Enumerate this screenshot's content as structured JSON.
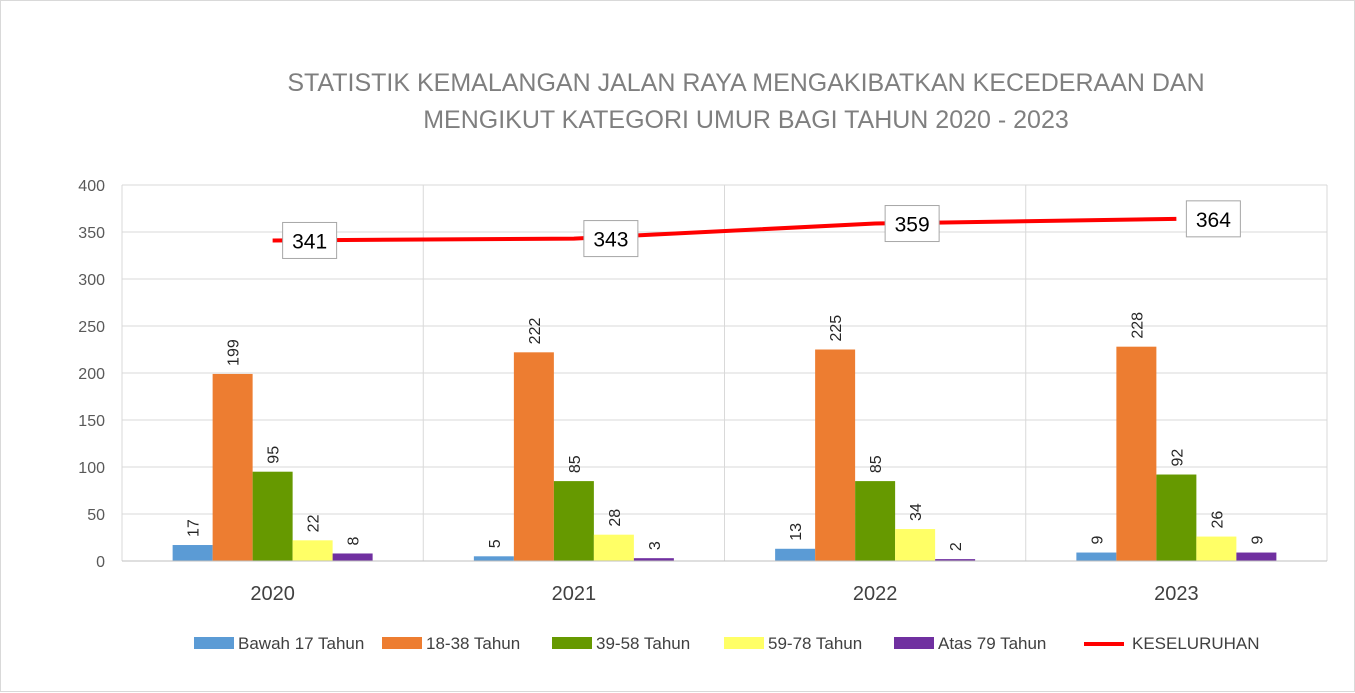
{
  "chart_data": {
    "type": "bar",
    "title": [
      "STATISTIK KEMALANGAN JALAN RAYA MENGAKIBATKAN KECEDERAAN DAN",
      "MENGIKUT KATEGORI UMUR  BAGI TAHUN 2020 - 2023"
    ],
    "categories": [
      "2020",
      "2021",
      "2022",
      "2023"
    ],
    "ylim": [
      0,
      400
    ],
    "yticks": [
      "0",
      "50",
      "100",
      "150",
      "200",
      "250",
      "300",
      "350",
      "400"
    ],
    "grid": true,
    "legend_position": "bottom",
    "series": [
      {
        "name": "Bawah 17 Tahun",
        "color": "#5b9bd5",
        "values": [
          17,
          5,
          13,
          9
        ]
      },
      {
        "name": "18-38 Tahun",
        "color": "#ed7d31",
        "values": [
          199,
          222,
          225,
          228
        ]
      },
      {
        "name": "39-58 Tahun",
        "color": "#669900",
        "values": [
          95,
          85,
          85,
          92
        ]
      },
      {
        "name": "59-78 Tahun",
        "color": "#ffff66",
        "values": [
          22,
          28,
          34,
          26
        ]
      },
      {
        "name": "Atas 79 Tahun",
        "color": "#7030a0",
        "values": [
          8,
          3,
          2,
          9
        ]
      }
    ],
    "total": {
      "name": "KESELURUHAN",
      "type": "line",
      "color": "#ff0000",
      "values": [
        341,
        343,
        359,
        364
      ]
    }
  }
}
